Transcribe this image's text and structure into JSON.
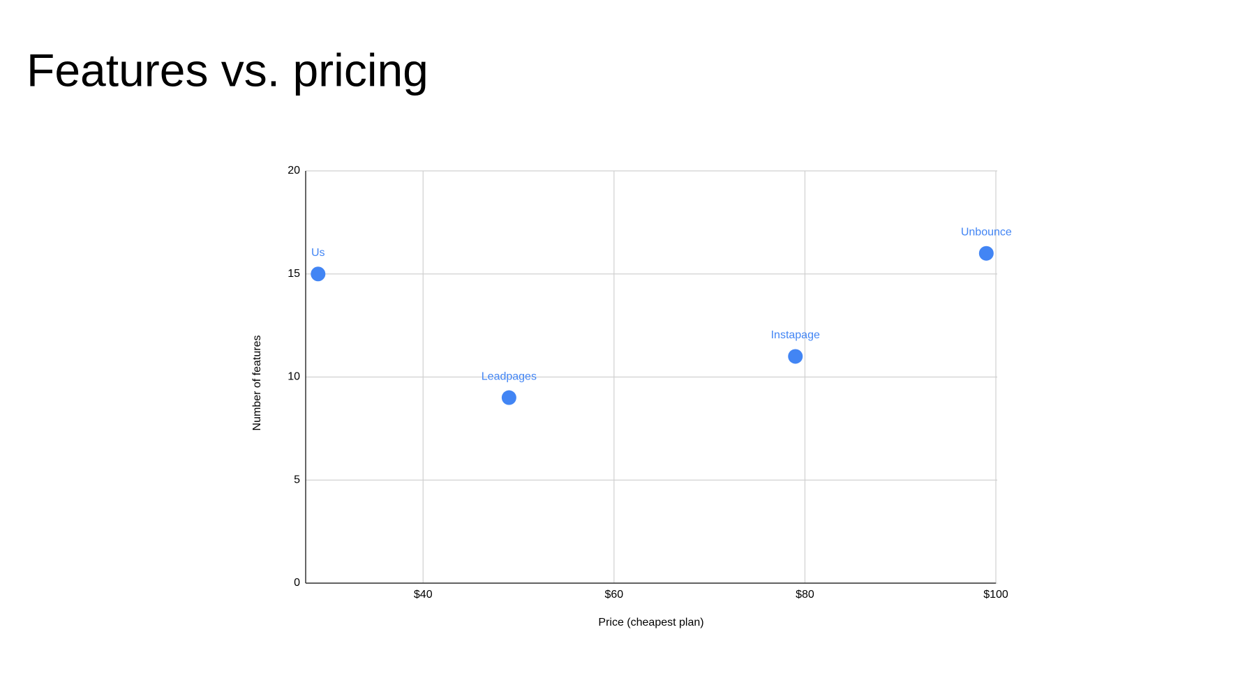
{
  "chart_data": {
    "type": "scatter",
    "title": "Features vs. pricing",
    "x_label": "Price (cheapest plan)",
    "y_label": "Number of features",
    "x": [
      29,
      49,
      79,
      99
    ],
    "point_labels": [
      "Us",
      "Leadpages",
      "Instapage",
      "Unbounce"
    ],
    "series": [
      {
        "color": "#4285f4",
        "values": [
          15,
          9,
          11,
          16
        ]
      }
    ],
    "xlim": [
      27.7,
      100
    ],
    "xticks": [
      {
        "value": 40,
        "label": "$40"
      },
      {
        "value": 60,
        "label": "$60"
      },
      {
        "value": 80,
        "label": "$80"
      },
      {
        "value": 100,
        "label": "$100"
      }
    ],
    "ylim": [
      0,
      20
    ],
    "yticks": [
      0,
      5,
      10,
      15,
      20
    ],
    "grid": true
  }
}
